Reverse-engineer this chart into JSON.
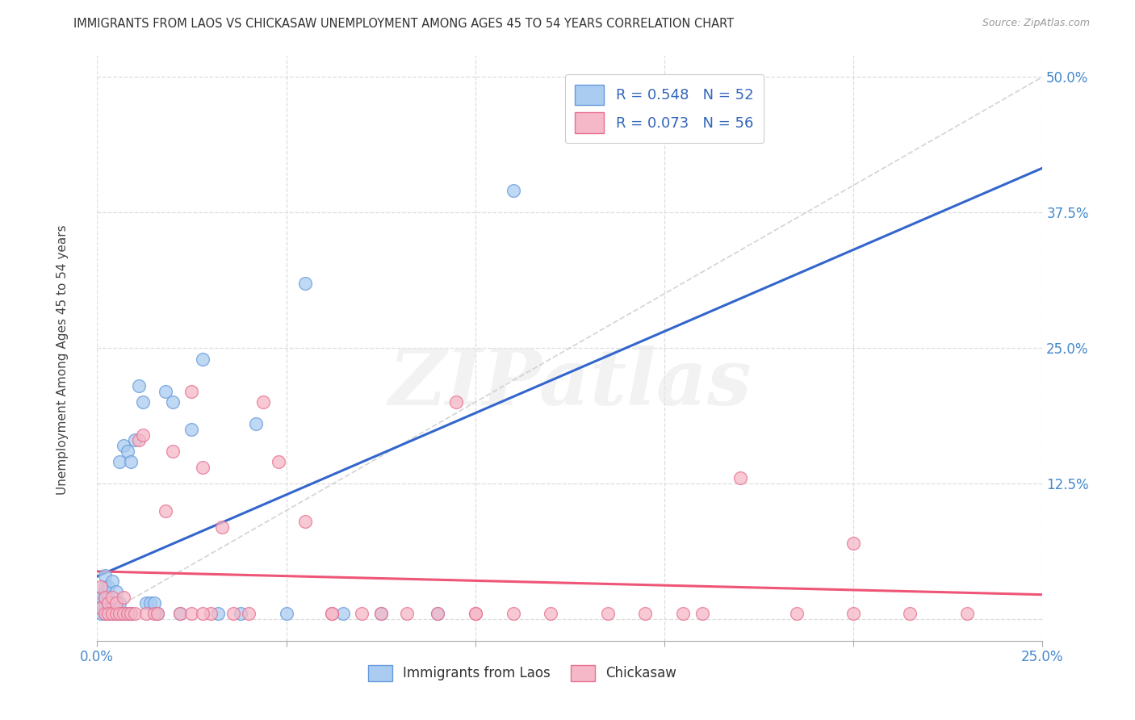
{
  "title": "IMMIGRANTS FROM LAOS VS CHICKASAW UNEMPLOYMENT AMONG AGES 45 TO 54 YEARS CORRELATION CHART",
  "source": "Source: ZipAtlas.com",
  "ylabel": "Unemployment Among Ages 45 to 54 years",
  "xlim": [
    0.0,
    0.25
  ],
  "ylim": [
    -0.02,
    0.52
  ],
  "xticks": [
    0.0,
    0.05,
    0.1,
    0.15,
    0.2,
    0.25
  ],
  "yticks": [
    0.0,
    0.125,
    0.25,
    0.375,
    0.5
  ],
  "background_color": "#ffffff",
  "grid_color": "#dddddd",
  "watermark_text": "ZIPatlas",
  "series1_color": "#aaccf0",
  "series1_edge_color": "#6699dd",
  "series2_color": "#f5b8c8",
  "series2_edge_color": "#e87090",
  "trend1_color": "#3366cc",
  "trend2_color": "#ee5577",
  "diag_color": "#cccccc",
  "R1": 0.548,
  "N1": 52,
  "R2": 0.073,
  "N2": 56,
  "legend_label1": "Immigrants from Laos",
  "legend_label2": "Chickasaw",
  "series1_x": [
    0.001,
    0.001,
    0.001,
    0.001,
    0.002,
    0.002,
    0.002,
    0.002,
    0.002,
    0.002,
    0.003,
    0.003,
    0.003,
    0.003,
    0.003,
    0.004,
    0.004,
    0.004,
    0.004,
    0.005,
    0.005,
    0.005,
    0.006,
    0.006,
    0.006,
    0.007,
    0.007,
    0.008,
    0.008,
    0.009,
    0.009,
    0.01,
    0.011,
    0.012,
    0.013,
    0.014,
    0.015,
    0.016,
    0.018,
    0.02,
    0.022,
    0.025,
    0.028,
    0.032,
    0.038,
    0.042,
    0.05,
    0.055,
    0.065,
    0.075,
    0.09,
    0.11
  ],
  "series1_y": [
    0.005,
    0.01,
    0.015,
    0.02,
    0.005,
    0.01,
    0.02,
    0.025,
    0.03,
    0.04,
    0.005,
    0.01,
    0.015,
    0.02,
    0.03,
    0.005,
    0.01,
    0.015,
    0.035,
    0.005,
    0.01,
    0.025,
    0.005,
    0.015,
    0.145,
    0.005,
    0.16,
    0.005,
    0.155,
    0.005,
    0.145,
    0.165,
    0.215,
    0.2,
    0.015,
    0.015,
    0.015,
    0.005,
    0.21,
    0.2,
    0.005,
    0.175,
    0.24,
    0.005,
    0.005,
    0.18,
    0.005,
    0.31,
    0.005,
    0.005,
    0.005,
    0.395
  ],
  "series2_x": [
    0.001,
    0.001,
    0.002,
    0.002,
    0.003,
    0.003,
    0.004,
    0.004,
    0.005,
    0.005,
    0.006,
    0.007,
    0.007,
    0.008,
    0.009,
    0.01,
    0.011,
    0.012,
    0.013,
    0.015,
    0.016,
    0.018,
    0.02,
    0.022,
    0.025,
    0.025,
    0.028,
    0.03,
    0.033,
    0.036,
    0.04,
    0.044,
    0.048,
    0.055,
    0.062,
    0.07,
    0.075,
    0.082,
    0.09,
    0.095,
    0.1,
    0.11,
    0.12,
    0.135,
    0.145,
    0.155,
    0.17,
    0.185,
    0.2,
    0.215,
    0.23,
    0.1,
    0.16,
    0.2,
    0.028,
    0.062
  ],
  "series2_y": [
    0.03,
    0.01,
    0.02,
    0.005,
    0.015,
    0.005,
    0.02,
    0.005,
    0.005,
    0.015,
    0.005,
    0.005,
    0.02,
    0.005,
    0.005,
    0.005,
    0.165,
    0.17,
    0.005,
    0.005,
    0.005,
    0.1,
    0.155,
    0.005,
    0.005,
    0.21,
    0.14,
    0.005,
    0.085,
    0.005,
    0.005,
    0.2,
    0.145,
    0.09,
    0.005,
    0.005,
    0.005,
    0.005,
    0.005,
    0.2,
    0.005,
    0.005,
    0.005,
    0.005,
    0.005,
    0.005,
    0.13,
    0.005,
    0.005,
    0.005,
    0.005,
    0.005,
    0.005,
    0.07,
    0.005,
    0.005
  ]
}
